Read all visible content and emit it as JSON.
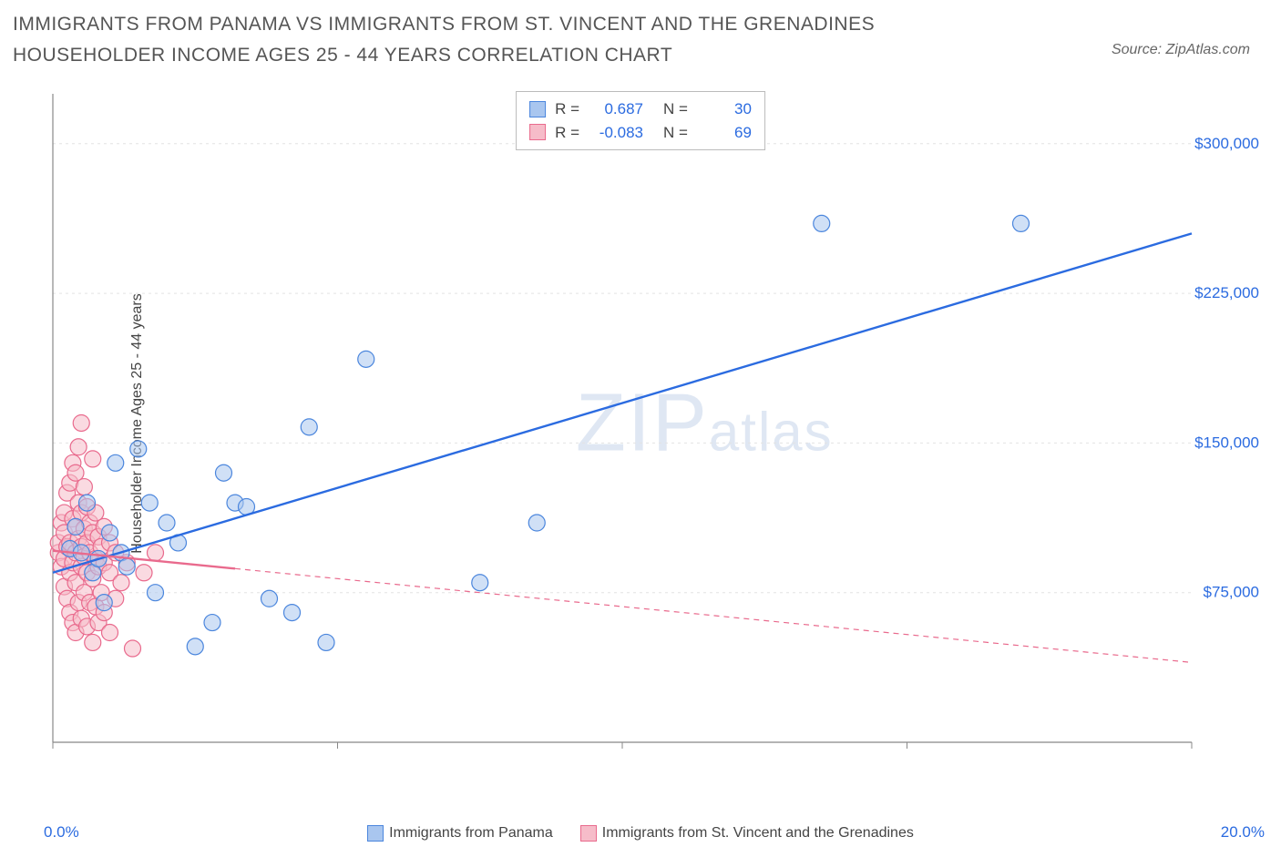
{
  "title": "IMMIGRANTS FROM PANAMA VS IMMIGRANTS FROM ST. VINCENT AND THE GRENADINES HOUSEHOLDER INCOME AGES 25 - 44 YEARS CORRELATION CHART",
  "source": "Source: ZipAtlas.com",
  "ylabel": "Householder Income Ages 25 - 44 years",
  "watermark": "ZIPatlas",
  "chart": {
    "type": "scatter",
    "background_color": "#ffffff",
    "grid_color": "#e3e3e3",
    "axis_color": "#888888",
    "tick_color": "#888888",
    "xlim": [
      0,
      20
    ],
    "ylim": [
      0,
      325000
    ],
    "x_ticks": [
      0,
      5,
      10,
      15,
      20
    ],
    "x_tick_labels": [
      "0.0%",
      "",
      "",
      "",
      "20.0%"
    ],
    "y_ticks": [
      75000,
      150000,
      225000,
      300000
    ],
    "y_tick_labels": [
      "$75,000",
      "$150,000",
      "$225,000",
      "$300,000"
    ],
    "y_label_color": "#2b6be0",
    "x_label_color": "#2b6be0",
    "y_label_fontsize": 17,
    "axis_label_fontsize": 16,
    "marker_radius": 9,
    "marker_opacity": 0.55,
    "marker_stroke_width": 1.2,
    "line_width": 2.4,
    "dashed_pattern": "6 5",
    "series": [
      {
        "name": "Immigrants from Panama",
        "color_fill": "#a9c6ef",
        "color_stroke": "#4b86dd",
        "line_color": "#2b6be0",
        "R": "0.687",
        "N": "30",
        "trend": {
          "x1": 0,
          "y1": 85000,
          "x2": 20,
          "y2": 255000,
          "solid_until_x": 20
        },
        "points": [
          [
            0.3,
            97000
          ],
          [
            0.4,
            108000
          ],
          [
            0.5,
            95000
          ],
          [
            0.6,
            120000
          ],
          [
            0.7,
            85000
          ],
          [
            0.8,
            92000
          ],
          [
            0.9,
            70000
          ],
          [
            1.0,
            105000
          ],
          [
            1.1,
            140000
          ],
          [
            1.2,
            95000
          ],
          [
            1.3,
            88000
          ],
          [
            1.5,
            147000
          ],
          [
            1.7,
            120000
          ],
          [
            1.8,
            75000
          ],
          [
            2.0,
            110000
          ],
          [
            2.2,
            100000
          ],
          [
            2.5,
            48000
          ],
          [
            2.8,
            60000
          ],
          [
            3.0,
            135000
          ],
          [
            3.2,
            120000
          ],
          [
            3.4,
            118000
          ],
          [
            3.8,
            72000
          ],
          [
            4.2,
            65000
          ],
          [
            4.5,
            158000
          ],
          [
            4.8,
            50000
          ],
          [
            5.5,
            192000
          ],
          [
            7.5,
            80000
          ],
          [
            8.5,
            110000
          ],
          [
            13.5,
            260000
          ],
          [
            17.0,
            260000
          ]
        ]
      },
      {
        "name": "Immigrants from St. Vincent and the Grenadines",
        "color_fill": "#f6bcc9",
        "color_stroke": "#e96a8d",
        "line_color": "#e96a8d",
        "R": "-0.083",
        "N": "69",
        "trend": {
          "x1": 0,
          "y1": 96000,
          "x2": 20,
          "y2": 40000,
          "solid_until_x": 3.2
        },
        "points": [
          [
            0.1,
            95000
          ],
          [
            0.1,
            100000
          ],
          [
            0.15,
            88000
          ],
          [
            0.15,
            110000
          ],
          [
            0.2,
            78000
          ],
          [
            0.2,
            92000
          ],
          [
            0.2,
            105000
          ],
          [
            0.2,
            115000
          ],
          [
            0.25,
            72000
          ],
          [
            0.25,
            98000
          ],
          [
            0.25,
            125000
          ],
          [
            0.3,
            65000
          ],
          [
            0.3,
            85000
          ],
          [
            0.3,
            100000
          ],
          [
            0.3,
            130000
          ],
          [
            0.35,
            60000
          ],
          [
            0.35,
            90000
          ],
          [
            0.35,
            112000
          ],
          [
            0.35,
            140000
          ],
          [
            0.4,
            55000
          ],
          [
            0.4,
            80000
          ],
          [
            0.4,
            95000
          ],
          [
            0.4,
            108000
          ],
          [
            0.4,
            135000
          ],
          [
            0.45,
            70000
          ],
          [
            0.45,
            102000
          ],
          [
            0.45,
            120000
          ],
          [
            0.45,
            148000
          ],
          [
            0.5,
            62000
          ],
          [
            0.5,
            88000
          ],
          [
            0.5,
            98000
          ],
          [
            0.5,
            115000
          ],
          [
            0.5,
            160000
          ],
          [
            0.55,
            75000
          ],
          [
            0.55,
            93000
          ],
          [
            0.55,
            107000
          ],
          [
            0.55,
            128000
          ],
          [
            0.6,
            58000
          ],
          [
            0.6,
            85000
          ],
          [
            0.6,
            100000
          ],
          [
            0.6,
            118000
          ],
          [
            0.65,
            70000
          ],
          [
            0.65,
            95000
          ],
          [
            0.65,
            110000
          ],
          [
            0.7,
            50000
          ],
          [
            0.7,
            82000
          ],
          [
            0.7,
            105000
          ],
          [
            0.7,
            142000
          ],
          [
            0.75,
            68000
          ],
          [
            0.75,
            92000
          ],
          [
            0.75,
            115000
          ],
          [
            0.8,
            60000
          ],
          [
            0.8,
            88000
          ],
          [
            0.8,
            103000
          ],
          [
            0.85,
            75000
          ],
          [
            0.85,
            98000
          ],
          [
            0.9,
            65000
          ],
          [
            0.9,
            90000
          ],
          [
            0.9,
            108000
          ],
          [
            1.0,
            55000
          ],
          [
            1.0,
            85000
          ],
          [
            1.0,
            100000
          ],
          [
            1.1,
            72000
          ],
          [
            1.1,
            95000
          ],
          [
            1.2,
            80000
          ],
          [
            1.3,
            90000
          ],
          [
            1.4,
            47000
          ],
          [
            1.6,
            85000
          ],
          [
            1.8,
            95000
          ]
        ]
      }
    ]
  },
  "legend_bottom": [
    {
      "label": "Immigrants from Panama",
      "fill": "#a9c6ef",
      "stroke": "#4b86dd"
    },
    {
      "label": "Immigrants from St. Vincent and the Grenadines",
      "fill": "#f6bcc9",
      "stroke": "#e96a8d"
    }
  ]
}
